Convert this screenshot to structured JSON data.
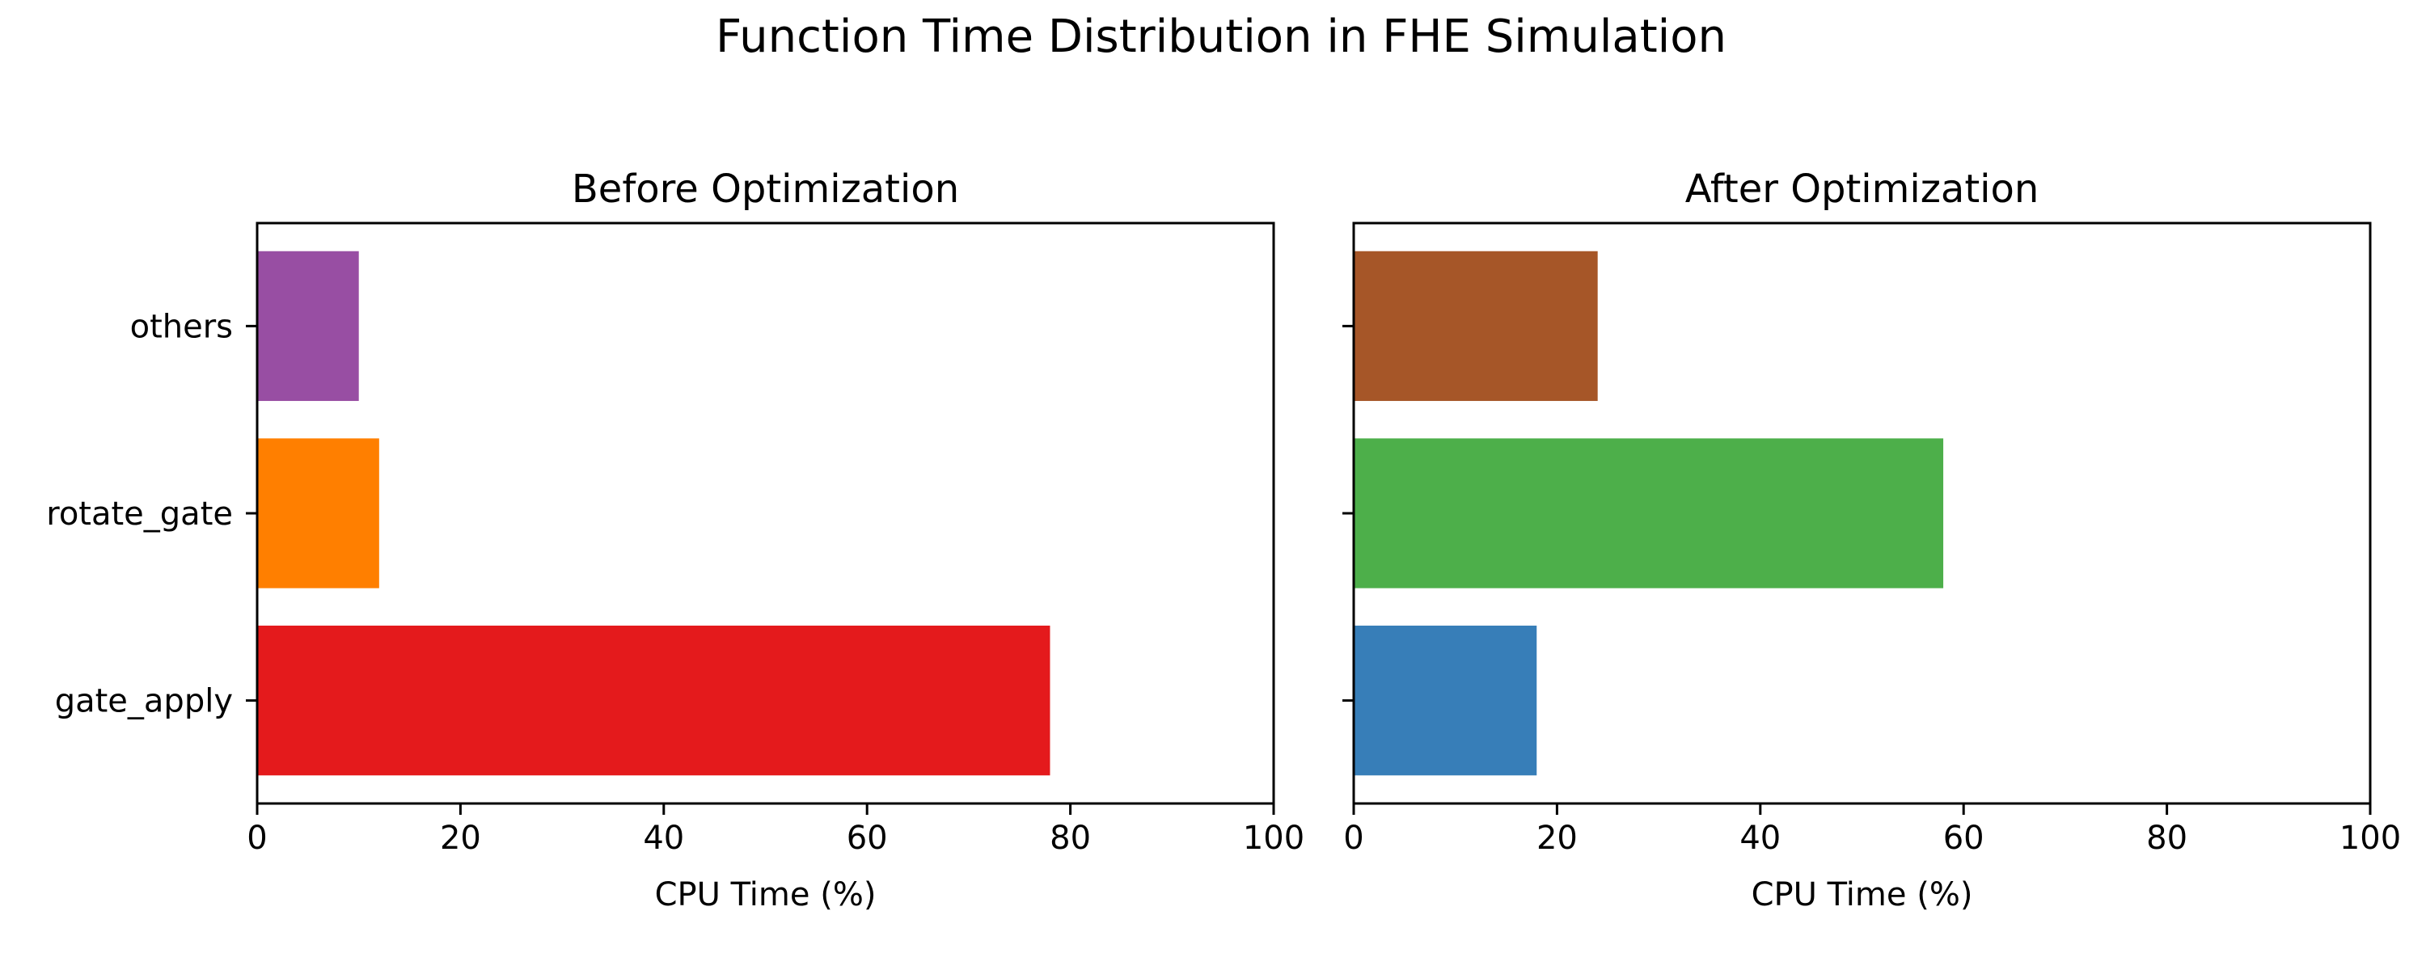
{
  "figure": {
    "title": "Function Time Distribution in FHE Simulation"
  },
  "chart_data": [
    {
      "type": "bar",
      "orientation": "horizontal",
      "title": "Before Optimization",
      "xlabel": "CPU Time (%)",
      "ylabel": "",
      "xlim": [
        0,
        100
      ],
      "xticks": [
        0,
        20,
        40,
        60,
        80,
        100
      ],
      "categories": [
        "gate_apply",
        "rotate_gate",
        "others"
      ],
      "values": [
        78,
        12,
        10
      ],
      "colors": [
        "#e41a1c",
        "#ff7f00",
        "#984ea3"
      ],
      "show_category_labels": true,
      "grid": false
    },
    {
      "type": "bar",
      "orientation": "horizontal",
      "title": "After Optimization",
      "xlabel": "CPU Time (%)",
      "ylabel": "",
      "xlim": [
        0,
        100
      ],
      "xticks": [
        0,
        20,
        40,
        60,
        80,
        100
      ],
      "categories": [
        "gate_apply",
        "rotate_gate",
        "others"
      ],
      "values": [
        18,
        58,
        24
      ],
      "colors": [
        "#377eb8",
        "#4daf4a",
        "#a65628"
      ],
      "show_category_labels": false,
      "grid": false
    }
  ]
}
